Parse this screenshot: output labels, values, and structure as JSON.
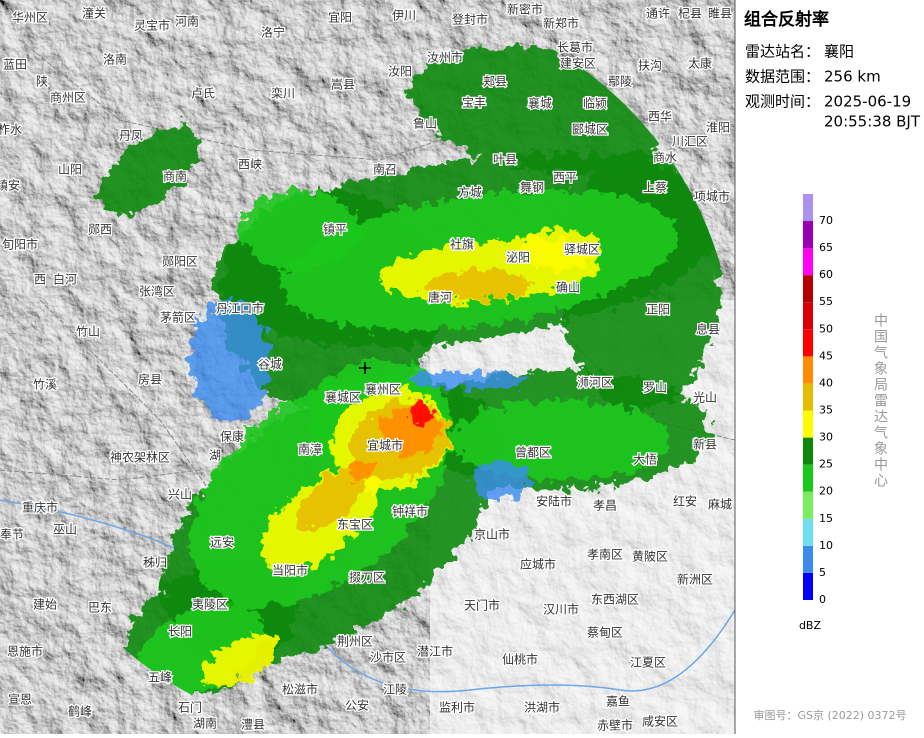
{
  "panel": {
    "title": "组合反射率",
    "station_label": "雷达站名：",
    "station": "襄阳",
    "range_label": "数据范围：",
    "range": "256 km",
    "time_label": "观测时间：",
    "date": "2025-06-19",
    "time": "20:55:38 BJT",
    "agency": "中国气象局雷达气象中心",
    "approval": "审图号：GS京 (2022) 0372号"
  },
  "legend": {
    "colors": [
      "#0000f6",
      "#3c8cf0",
      "#6ee0f0",
      "#7aee5e",
      "#1cc81c",
      "#0b8a0b",
      "#fcfc00",
      "#e6bc00",
      "#ff8c00",
      "#ff0000",
      "#d80000",
      "#b40000",
      "#ff00f0",
      "#9a00b4",
      "#ae92f0"
    ],
    "labels": [
      0,
      5,
      10,
      15,
      20,
      25,
      30,
      35,
      40,
      45,
      50,
      55,
      60,
      65,
      70
    ],
    "unit": "dBZ"
  },
  "map_labels": [
    "华州区",
    "潼关",
    "灵宝市",
    "河南",
    "宜阳",
    "伊川",
    "登封市",
    "新密市",
    "新郑市",
    "长葛市",
    "通许",
    "杞县",
    "睢县",
    "洛宁",
    "汝州市",
    "蓝田",
    "陕",
    "商州区",
    "洛南",
    "卢氏",
    "栾川",
    "嵩县",
    "汝阳",
    "郏县",
    "宝丰",
    "襄城",
    "建安区",
    "鄢陵",
    "临颍",
    "扶沟",
    "太康",
    "西华",
    "淮阳",
    "鲁山",
    "叶县",
    "郾城区",
    "商水",
    "川汇区",
    "柞水",
    "丹凤",
    "山阳",
    "商南",
    "西峡",
    "南召",
    "方城",
    "舞钢",
    "西平",
    "上蔡",
    "项城市",
    "镇安",
    "郧西",
    "镇平",
    "旬阳市",
    "西",
    "白河",
    "郧阳区",
    "张湾区",
    "茅箭区",
    "丹江口市",
    "社旗",
    "唐河",
    "泌阳",
    "驿城区",
    "确山",
    "正阳",
    "息县",
    "竹山",
    "房县",
    "竹溪",
    "谷城",
    "襄城区",
    "襄州区",
    "浉河区",
    "罗山",
    "光山",
    "保康",
    "南漳",
    "宜城市",
    "曾都区",
    "新县",
    "大悟",
    "神农架林区",
    "湖",
    "兴山",
    "重庆市",
    "巫山",
    "奉节",
    "钟祥市",
    "东宝区",
    "京山市",
    "安陆市",
    "孝昌",
    "红安",
    "麻城",
    "秭归",
    "远安",
    "当阳市",
    "掇刀区",
    "应城市",
    "孝南区",
    "黄陂区",
    "新洲区",
    "建始",
    "巴东",
    "夷陵区",
    "天门市",
    "汉川市",
    "东西湖区",
    "长阳",
    "荆州区",
    "蔡甸区",
    "恩施市",
    "沙市区",
    "潜江市",
    "仙桃市",
    "江夏区",
    "五峰",
    "宣恩",
    "松滋市",
    "江陵",
    "鹤峰",
    "石门",
    "湖南",
    "澧县",
    "公安",
    "监利市",
    "洪湖市",
    "嘉鱼",
    "赤壁市",
    "咸安区"
  ]
}
